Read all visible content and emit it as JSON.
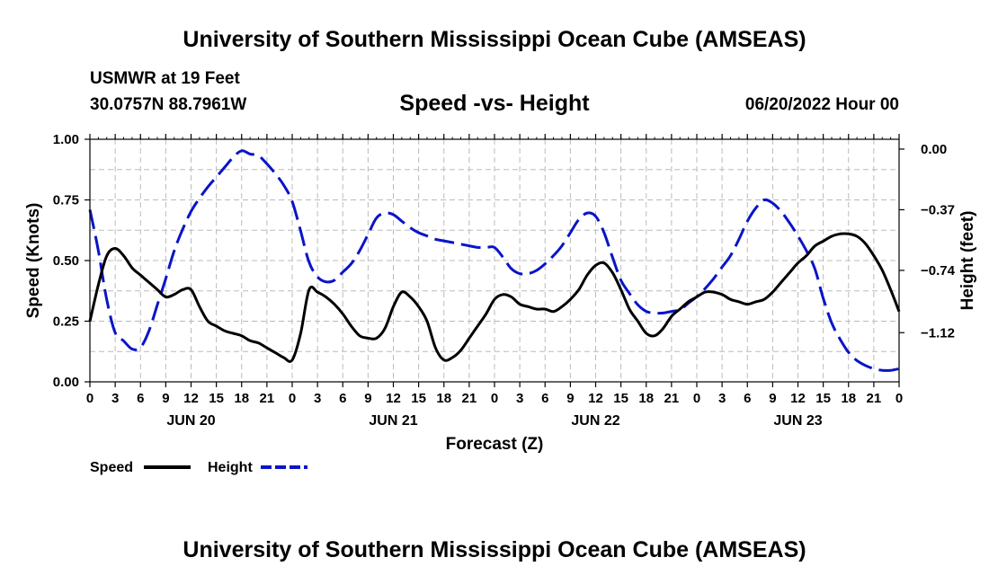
{
  "header": {
    "title": "University of Southern Mississippi Ocean Cube (AMSEAS)",
    "station": "USMWR at 19 Feet",
    "coordinates": "30.0757N  88.7961W",
    "subtitle": "Speed -vs- Height",
    "date": "06/20/2022 Hour 00"
  },
  "footer": {
    "title": "University of Southern Mississippi Ocean Cube (AMSEAS)"
  },
  "colors": {
    "speed": "#000000",
    "height": "#0a14c8",
    "grid": "#bbbbbb"
  },
  "chart_data": {
    "type": "line",
    "title": "Speed -vs- Height",
    "xlabel": "Forecast (Z)",
    "ylabel": "Speed (Knots)",
    "y2label": "Height (feet)",
    "xlim": [
      0,
      96
    ],
    "ylim": [
      0,
      1
    ],
    "y2lim": [
      -1.42,
      0.06
    ],
    "x_tick_step": 3,
    "x_tick_labels": [
      "0",
      "3",
      "6",
      "9",
      "12",
      "15",
      "18",
      "21",
      "0",
      "3",
      "6",
      "9",
      "12",
      "15",
      "18",
      "21",
      "0",
      "3",
      "6",
      "9",
      "12",
      "15",
      "18",
      "21",
      "0",
      "3",
      "6",
      "9",
      "12",
      "15",
      "18",
      "21",
      "0"
    ],
    "y_ticks": [
      0.0,
      0.25,
      0.5,
      0.75,
      1.0
    ],
    "y_tick_labels": [
      "0.00",
      "0.25",
      "0.50",
      "0.75",
      "1.00"
    ],
    "y2_ticks": [
      0.0,
      -0.37,
      -0.74,
      -1.12
    ],
    "y2_tick_labels": [
      "0.00",
      "−0.37",
      "−0.74",
      "−1.12"
    ],
    "day_labels": [
      {
        "x": 12,
        "label": "JUN 20"
      },
      {
        "x": 36,
        "label": "JUN 21"
      },
      {
        "x": 60,
        "label": "JUN 22"
      },
      {
        "x": 84,
        "label": "JUN 23"
      }
    ],
    "grid": true,
    "legend": {
      "position": "bottom-left",
      "entries": [
        {
          "name": "Speed",
          "style": "solid"
        },
        {
          "name": "Height",
          "style": "dashed"
        }
      ]
    },
    "series": [
      {
        "name": "Speed",
        "axis": "left",
        "x": [
          0,
          1,
          2,
          3,
          4,
          5,
          6,
          7,
          8,
          9,
          10,
          11,
          12,
          13,
          14,
          15,
          16,
          17,
          18,
          19,
          20,
          21,
          22,
          23,
          24,
          25,
          26,
          27,
          28,
          29,
          30,
          31,
          32,
          33,
          34,
          35,
          36,
          37,
          38,
          39,
          40,
          41,
          42,
          43,
          44,
          45,
          46,
          47,
          48,
          49,
          50,
          51,
          52,
          53,
          54,
          55,
          56,
          57,
          58,
          59,
          60,
          61,
          62,
          63,
          64,
          65,
          66,
          67,
          68,
          69,
          70,
          71,
          72,
          73,
          74,
          75,
          76,
          77,
          78,
          79,
          80,
          81,
          82,
          83,
          84,
          85,
          86,
          87,
          88,
          89,
          90,
          91,
          92,
          93,
          94,
          95,
          96
        ],
        "values": [
          0.25,
          0.4,
          0.52,
          0.55,
          0.52,
          0.47,
          0.44,
          0.41,
          0.38,
          0.35,
          0.36,
          0.38,
          0.38,
          0.31,
          0.25,
          0.23,
          0.21,
          0.2,
          0.19,
          0.17,
          0.16,
          0.14,
          0.12,
          0.1,
          0.09,
          0.2,
          0.38,
          0.37,
          0.35,
          0.32,
          0.28,
          0.23,
          0.19,
          0.18,
          0.18,
          0.22,
          0.31,
          0.37,
          0.35,
          0.31,
          0.25,
          0.14,
          0.09,
          0.1,
          0.13,
          0.18,
          0.23,
          0.28,
          0.34,
          0.36,
          0.35,
          0.32,
          0.31,
          0.3,
          0.3,
          0.29,
          0.31,
          0.34,
          0.38,
          0.44,
          0.48,
          0.49,
          0.45,
          0.38,
          0.3,
          0.25,
          0.2,
          0.19,
          0.22,
          0.27,
          0.3,
          0.33,
          0.35,
          0.37,
          0.37,
          0.36,
          0.34,
          0.33,
          0.32,
          0.33,
          0.34,
          0.37,
          0.41,
          0.45,
          0.49,
          0.52,
          0.56,
          0.58,
          0.6,
          0.61,
          0.61,
          0.6,
          0.57,
          0.52,
          0.46,
          0.38,
          0.29
        ]
      },
      {
        "name": "Height",
        "axis": "right",
        "x": [
          0,
          1,
          2,
          3,
          4,
          5,
          6,
          7,
          8,
          9,
          10,
          11,
          12,
          13,
          14,
          15,
          16,
          17,
          18,
          19,
          20,
          21,
          22,
          23,
          24,
          25,
          26,
          27,
          28,
          29,
          30,
          31,
          32,
          33,
          34,
          35,
          36,
          37,
          38,
          39,
          40,
          41,
          42,
          43,
          44,
          45,
          46,
          47,
          48,
          49,
          50,
          51,
          52,
          53,
          54,
          55,
          56,
          57,
          58,
          59,
          60,
          61,
          62,
          63,
          64,
          65,
          66,
          67,
          68,
          69,
          70,
          71,
          72,
          73,
          74,
          75,
          76,
          77,
          78,
          79,
          80,
          81,
          82,
          83,
          84,
          85,
          86,
          87,
          88,
          89,
          90,
          91,
          92,
          93,
          94,
          95,
          96
        ],
        "values": [
          -0.37,
          -0.62,
          -0.92,
          -1.12,
          -1.17,
          -1.22,
          -1.21,
          -1.11,
          -0.95,
          -0.79,
          -0.62,
          -0.49,
          -0.38,
          -0.3,
          -0.23,
          -0.17,
          -0.11,
          -0.05,
          -0.01,
          -0.03,
          -0.04,
          -0.09,
          -0.15,
          -0.22,
          -0.32,
          -0.5,
          -0.69,
          -0.78,
          -0.81,
          -0.8,
          -0.75,
          -0.7,
          -0.62,
          -0.52,
          -0.42,
          -0.39,
          -0.4,
          -0.44,
          -0.48,
          -0.51,
          -0.53,
          -0.55,
          -0.56,
          -0.57,
          -0.58,
          -0.59,
          -0.6,
          -0.6,
          -0.6,
          -0.66,
          -0.73,
          -0.76,
          -0.76,
          -0.74,
          -0.7,
          -0.65,
          -0.59,
          -0.51,
          -0.43,
          -0.39,
          -0.41,
          -0.51,
          -0.66,
          -0.8,
          -0.88,
          -0.95,
          -0.99,
          -1.0,
          -1.0,
          -0.99,
          -0.98,
          -0.94,
          -0.9,
          -0.85,
          -0.79,
          -0.72,
          -0.65,
          -0.55,
          -0.44,
          -0.36,
          -0.31,
          -0.33,
          -0.38,
          -0.45,
          -0.53,
          -0.62,
          -0.73,
          -0.91,
          -1.06,
          -1.16,
          -1.24,
          -1.29,
          -1.32,
          -1.34,
          -1.35,
          -1.35,
          -1.34
        ]
      }
    ]
  }
}
